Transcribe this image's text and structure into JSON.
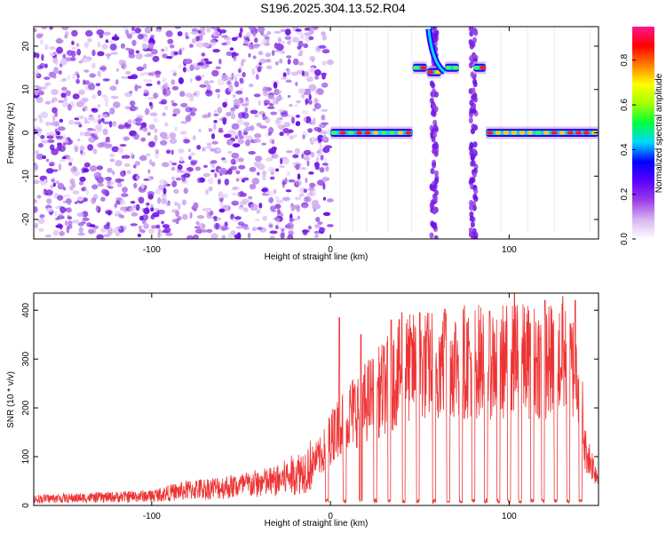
{
  "title": "S196.2025.304.13.52.R04",
  "chart_data": [
    {
      "type": "heatmap",
      "xlabel": "Height of straight line (km)",
      "ylabel": "Frequency (Hz)",
      "xlim": [
        -166,
        150
      ],
      "ylim": [
        -24.5,
        24.5
      ],
      "x_ticks": [
        -100,
        0,
        100
      ],
      "y_ticks": [
        -20,
        -10,
        0,
        10,
        20
      ],
      "colorbar": {
        "label": "Normalized spectral amplitude",
        "range": [
          0.0,
          0.95
        ],
        "ticks": [
          "0.0",
          "0.2",
          "0.4",
          "0.6",
          "0.8"
        ],
        "colormap": [
          "#ffffff",
          "#d8b4f0",
          "#9d3ce6",
          "#5a00ff",
          "#0000ff",
          "#00d8ff",
          "#00ff40",
          "#a0ff00",
          "#ffff00",
          "#ff8000",
          "#ff0000",
          "#ff1493"
        ]
      },
      "regions": [
        {
          "x_range": [
            -166,
            0
          ],
          "kind": "noise",
          "freq_range": [
            -24.5,
            24.5
          ]
        },
        {
          "x_range": [
            0,
            46
          ],
          "kind": "band",
          "freq": 0
        },
        {
          "x_range": [
            46,
            54
          ],
          "kind": "band",
          "freq": 15
        },
        {
          "x_range": [
            54,
            62
          ],
          "kind": "band",
          "freq": 14
        },
        {
          "x_range": [
            64,
            72
          ],
          "kind": "band",
          "freq": 15
        },
        {
          "x_range": [
            80,
            87
          ],
          "kind": "band",
          "freq": 15
        },
        {
          "x_range": [
            87,
            150
          ],
          "kind": "band",
          "freq": 0
        }
      ]
    },
    {
      "type": "line",
      "xlabel": "Height of straight line (km)",
      "ylabel": "SNR (10 * v/v)",
      "xlim": [
        -166,
        150
      ],
      "ylim": [
        0,
        435
      ],
      "x_ticks": [
        -100,
        0,
        100
      ],
      "y_ticks": [
        0,
        100,
        200,
        300,
        400
      ],
      "color": "#ee3333",
      "envelope": [
        {
          "x": -166,
          "y": 15
        },
        {
          "x": -130,
          "y": 18
        },
        {
          "x": -100,
          "y": 22
        },
        {
          "x": -80,
          "y": 35
        },
        {
          "x": -50,
          "y": 45
        },
        {
          "x": -30,
          "y": 55
        },
        {
          "x": -15,
          "y": 80
        },
        {
          "x": -5,
          "y": 110
        },
        {
          "x": 0,
          "y": 150
        },
        {
          "x": 10,
          "y": 200
        },
        {
          "x": 20,
          "y": 230
        },
        {
          "x": 30,
          "y": 260
        },
        {
          "x": 40,
          "y": 300
        },
        {
          "x": 55,
          "y": 310
        },
        {
          "x": 70,
          "y": 320
        },
        {
          "x": 90,
          "y": 320
        },
        {
          "x": 110,
          "y": 320
        },
        {
          "x": 130,
          "y": 320
        },
        {
          "x": 140,
          "y": 300
        },
        {
          "x": 142,
          "y": 130
        },
        {
          "x": 150,
          "y": 60
        }
      ],
      "dips": [
        -2,
        8,
        17,
        25,
        33,
        41,
        49,
        58,
        66,
        73,
        80,
        87,
        94,
        100,
        106,
        113,
        119,
        126,
        133,
        140
      ],
      "peaks": [
        {
          "x": 2.5,
          "y": 195
        },
        {
          "x": 5,
          "y": 385
        },
        {
          "x": 17,
          "y": 350
        },
        {
          "x": 34,
          "y": 380
        },
        {
          "x": 40,
          "y": 395
        },
        {
          "x": 50,
          "y": 395
        },
        {
          "x": 64,
          "y": 402
        },
        {
          "x": 89,
          "y": 398
        },
        {
          "x": 103,
          "y": 435
        },
        {
          "x": 120,
          "y": 420
        },
        {
          "x": 130,
          "y": 428
        },
        {
          "x": 137,
          "y": 420
        }
      ]
    }
  ]
}
